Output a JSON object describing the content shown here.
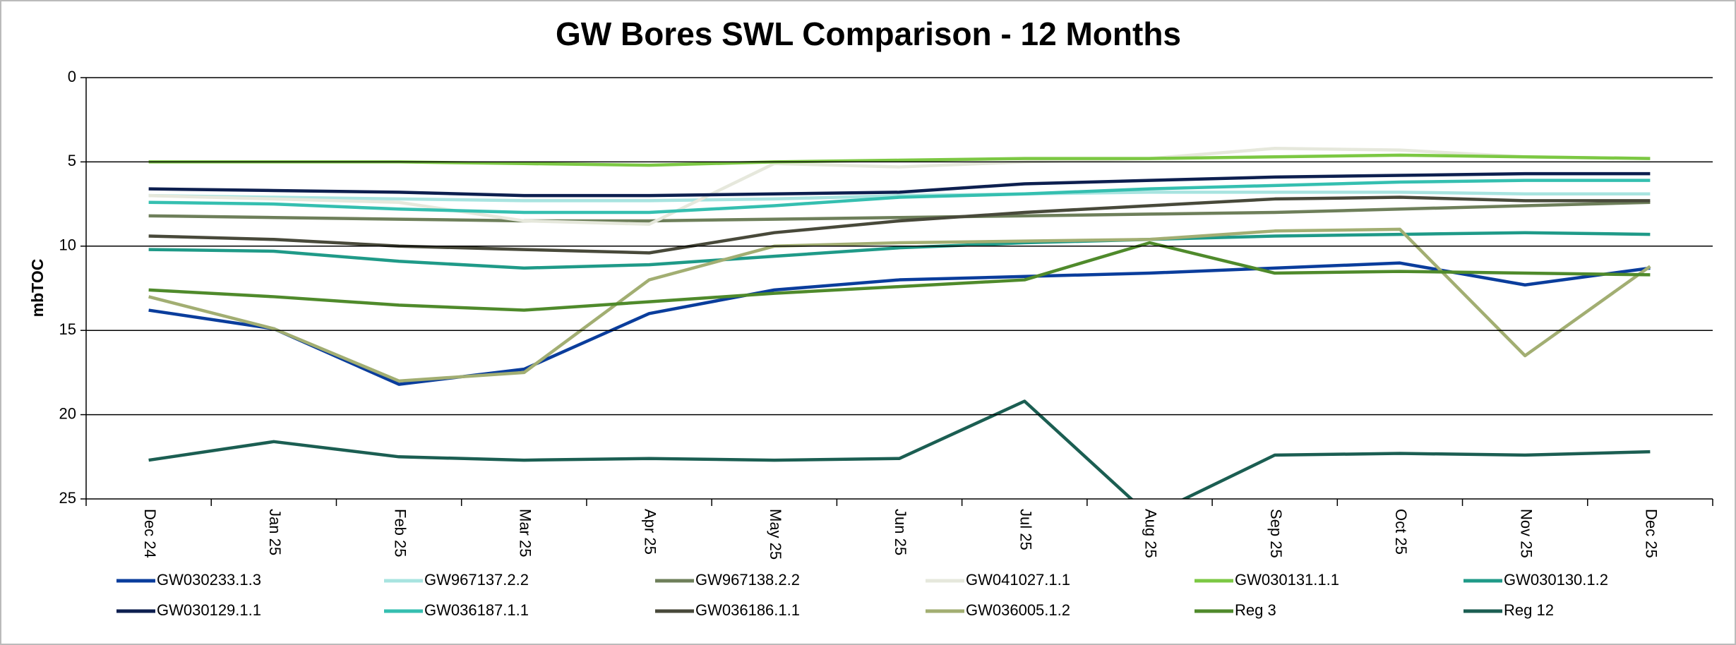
{
  "chart_data": {
    "type": "line",
    "title": "GW Bores SWL Comparison - 12 Months",
    "y_label": "mbTOC",
    "categories": [
      "Dec 24",
      "Jan 25",
      "Feb 25",
      "Mar 25",
      "Apr 25",
      "May 25",
      "Jun 25",
      "Jul 25",
      "Aug 25",
      "Sep 25",
      "Oct 25",
      "Nov 25",
      "Dec 25"
    ],
    "ylim": [
      0,
      25
    ],
    "yticks": [
      0,
      5,
      10,
      15,
      20,
      25
    ],
    "y_inverted": true,
    "grid": true,
    "legend": "bottom",
    "series": [
      {
        "name": "GW030233.1.3",
        "color": "#0a3d9c",
        "values": [
          13.8,
          14.9,
          18.2,
          17.3,
          14.0,
          12.6,
          12.0,
          11.8,
          11.6,
          11.3,
          11.0,
          12.3,
          11.3
        ]
      },
      {
        "name": "GW967137.2.2",
        "color": "#a8e4e0",
        "values": [
          7.0,
          7.1,
          7.2,
          7.3,
          7.3,
          7.2,
          7.0,
          6.9,
          6.8,
          6.8,
          6.8,
          6.9,
          6.9
        ]
      },
      {
        "name": "GW967138.2.2",
        "color": "#6e7f5a",
        "values": [
          8.2,
          8.3,
          8.4,
          8.5,
          8.5,
          8.4,
          8.3,
          8.2,
          8.1,
          8.0,
          7.8,
          7.6,
          7.4
        ]
      },
      {
        "name": "GW041027.1.1",
        "color": "#e6e8dc",
        "values": [
          7.0,
          7.2,
          7.4,
          8.5,
          8.7,
          5.1,
          5.3,
          5.0,
          4.8,
          4.2,
          4.3,
          4.7,
          4.8
        ]
      },
      {
        "name": "GW030131.1.1",
        "color": "#7cc843",
        "values": [
          5.0,
          5.0,
          5.0,
          5.1,
          5.2,
          5.0,
          4.9,
          4.8,
          4.8,
          4.7,
          4.6,
          4.7,
          4.8
        ]
      },
      {
        "name": "GW030130.1.2",
        "color": "#1f9a88",
        "values": [
          10.2,
          10.3,
          10.9,
          11.3,
          11.1,
          10.6,
          10.1,
          9.8,
          9.6,
          9.4,
          9.3,
          9.2,
          9.3
        ]
      },
      {
        "name": "GW030129.1.1",
        "color": "#0d1f4f",
        "values": [
          6.6,
          6.7,
          6.8,
          7.0,
          7.0,
          6.9,
          6.8,
          6.3,
          6.1,
          5.9,
          5.8,
          5.7,
          5.7
        ]
      },
      {
        "name": "GW036187.1.1",
        "color": "#35bfb0",
        "values": [
          7.4,
          7.5,
          7.8,
          8.0,
          8.0,
          7.6,
          7.1,
          6.9,
          6.6,
          6.4,
          6.2,
          6.1,
          6.1
        ]
      },
      {
        "name": "GW036186.1.1",
        "color": "#48493a",
        "values": [
          9.4,
          9.6,
          10.0,
          10.2,
          10.4,
          9.2,
          8.5,
          8.0,
          7.6,
          7.2,
          7.1,
          7.3,
          7.3
        ]
      },
      {
        "name": "GW036005.1.2",
        "color": "#a2ae72",
        "values": [
          13.0,
          14.9,
          18.0,
          17.5,
          12.0,
          10.0,
          9.8,
          9.7,
          9.6,
          9.1,
          9.0,
          16.5,
          11.2
        ]
      },
      {
        "name": "Reg 3",
        "color": "#4f8a2b",
        "values": [
          12.6,
          13.0,
          13.5,
          13.8,
          13.3,
          12.8,
          12.4,
          12.0,
          9.8,
          11.6,
          11.5,
          11.6,
          11.7
        ]
      },
      {
        "name": "Reg 12",
        "color": "#1b5e52",
        "values": [
          22.7,
          21.6,
          22.5,
          22.7,
          22.6,
          22.7,
          22.6,
          19.2,
          26.0,
          22.4,
          22.3,
          22.4,
          22.2
        ]
      }
    ]
  }
}
